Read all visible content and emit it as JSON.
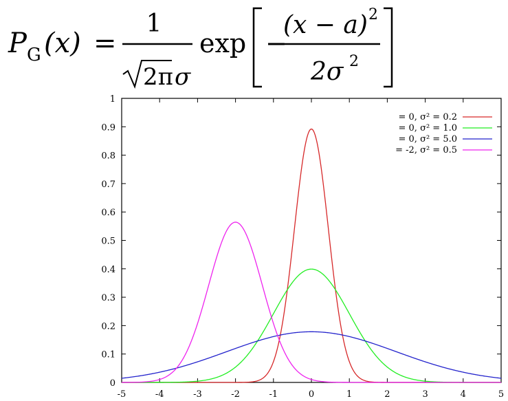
{
  "formula": {
    "lhs_symbol": "P",
    "lhs_subscript": "G",
    "lhs_arg": "(x)",
    "equals": "=",
    "frac1_numerator": "1",
    "frac1_sqrt": "2π",
    "frac1_sigma": "σ",
    "exp_word": "exp",
    "minus": "−",
    "frac2_numerator": "(x − a)",
    "frac2_numerator_power": "2",
    "frac2_denominator": "2σ",
    "frac2_denominator_power": "2"
  },
  "chart_data": {
    "type": "line",
    "title": "",
    "xlabel": "",
    "ylabel": "",
    "xlim": [
      -5,
      5
    ],
    "ylim": [
      0,
      1
    ],
    "x_ticks": [
      "-5",
      "-4",
      "-3",
      "-2",
      "-1",
      "0",
      "1",
      "2",
      "3",
      "4",
      "5"
    ],
    "y_ticks": [
      "0",
      "0.1",
      "0.2",
      "0.3",
      "0.4",
      "0.5",
      "0.6",
      "0.7",
      "0.8",
      "0.9",
      "1"
    ],
    "grid": false,
    "legend_position": "top-right",
    "series": [
      {
        "label": "= 0, σ² = 0.2",
        "mean": 0,
        "variance": 0.2,
        "color": "#d62728"
      },
      {
        "label": "= 0, σ² = 1.0",
        "mean": 0,
        "variance": 1.0,
        "color": "#22ee22"
      },
      {
        "label": "= 0, σ² = 5.0",
        "mean": 0,
        "variance": 5.0,
        "color": "#2222cc"
      },
      {
        "label": "= -2, σ² = 0.5",
        "mean": -2,
        "variance": 0.5,
        "color": "#ee22ee"
      }
    ]
  }
}
